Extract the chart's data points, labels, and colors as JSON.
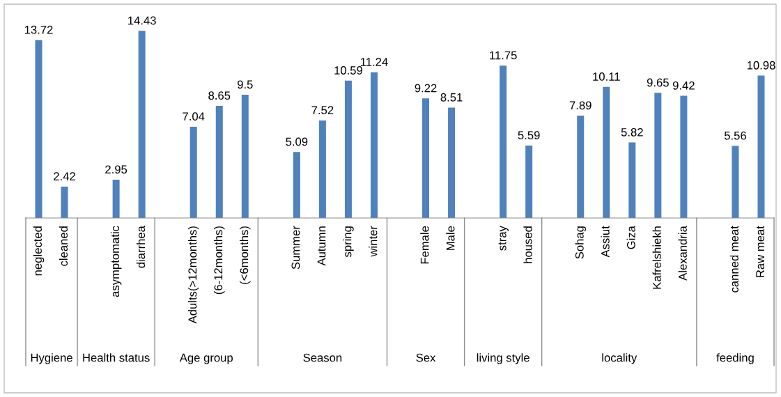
{
  "chart_data": {
    "type": "bar",
    "categories": [
      "neglected",
      "cleaned",
      null,
      "asymptomatic",
      "diarrhea",
      null,
      "Adults(>12months)",
      "(6-12months)",
      "(<6months)",
      null,
      "Summer",
      "Autumn",
      "spring",
      "winter",
      null,
      "Female",
      "Male",
      null,
      "stray",
      "housed",
      null,
      "Sohag",
      "Assiut",
      "Giza",
      "Kafrelshiekh",
      "Alexandria",
      null,
      "canned meat",
      "Raw meat"
    ],
    "values": [
      13.72,
      2.42,
      null,
      2.95,
      14.43,
      null,
      7.04,
      8.65,
      9.5,
      null,
      5.09,
      7.52,
      10.59,
      11.24,
      null,
      9.22,
      8.51,
      null,
      11.75,
      5.59,
      null,
      7.89,
      10.11,
      5.82,
      9.65,
      9.42,
      null,
      5.56,
      10.98
    ],
    "color": "#4f81bd",
    "tick_labels": "x",
    "data_labels": true,
    "annotations": [
      "Hygiene",
      "Health status",
      "Age group",
      "Season",
      "Sex",
      "living style",
      "locality",
      "feeding"
    ]
  }
}
